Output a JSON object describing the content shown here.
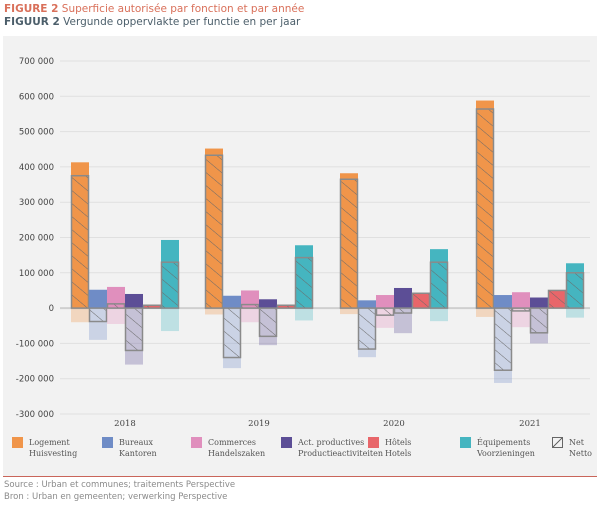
{
  "title_fr": {
    "prefix": "FIGURE 2",
    "text": "Superficie autorisée par fonction et par année"
  },
  "title_nl": {
    "prefix": "FIGUUR 2",
    "text": "Vergunde oppervlakte per functie en per jaar"
  },
  "source_fr": "Source : Urban et communes; traitements Perspective",
  "source_nl": "Bron : Urban en gemeenten; verwerking Perspective",
  "chart_data": {
    "type": "bar",
    "categories": [
      "2018",
      "2019",
      "2020",
      "2021"
    ],
    "ylim": [
      -300000,
      700000
    ],
    "yticks": [
      "700 000",
      "600 000",
      "500 000",
      "400 000",
      "300 000",
      "200 000",
      "100 000",
      "0",
      "-100 000",
      "-200 000",
      "-300 000"
    ],
    "grid": true,
    "legend_position": "bottom",
    "series": [
      {
        "name": "Logement",
        "name_nl": "Huisvesting",
        "color": "#f0954a",
        "gross_positive": [
          413000,
          452000,
          382000,
          588000
        ],
        "gross_negative": [
          -40000,
          -18000,
          -17000,
          -25000
        ],
        "net": [
          375000,
          433000,
          365000,
          564000
        ]
      },
      {
        "name": "Bureaux",
        "name_nl": "Kantoren",
        "color": "#6f8cc6",
        "gross_positive": [
          52000,
          35000,
          22000,
          37000
        ],
        "gross_negative": [
          -90000,
          -170000,
          -139000,
          -212000
        ],
        "net": [
          -38000,
          -140000,
          -116000,
          -176000
        ]
      },
      {
        "name": "Commerces",
        "name_nl": "Handelszaken",
        "color": "#e08fbd",
        "gross_positive": [
          60000,
          50000,
          37000,
          45000
        ],
        "gross_negative": [
          -45000,
          -40000,
          -56000,
          -54000
        ],
        "net": [
          12000,
          10000,
          -20000,
          -8000
        ]
      },
      {
        "name": "Act. productives",
        "name_nl": "Productieactiviteiten",
        "color": "#5c4e96",
        "gross_positive": [
          40000,
          25000,
          57000,
          30000
        ],
        "gross_negative": [
          -160000,
          -105000,
          -71000,
          -100000
        ],
        "net": [
          -120000,
          -80000,
          -14000,
          -70000
        ]
      },
      {
        "name": "Hôtels",
        "name_nl": "Hotels",
        "color": "#e8666a",
        "gross_positive": [
          10000,
          10000,
          42000,
          50000
        ],
        "gross_negative": [
          0,
          0,
          0,
          0
        ],
        "net": [
          8000,
          8000,
          42000,
          50000
        ]
      },
      {
        "name": "Équipements",
        "name_nl": "Voorzieningen",
        "color": "#45b5c0",
        "gross_positive": [
          193000,
          178000,
          167000,
          127000
        ],
        "gross_negative": [
          -65000,
          -35000,
          -37000,
          -27000
        ],
        "net": [
          130000,
          143000,
          130000,
          100000
        ]
      }
    ],
    "net_legend": {
      "name": "Net",
      "name_nl": "Netto"
    }
  }
}
